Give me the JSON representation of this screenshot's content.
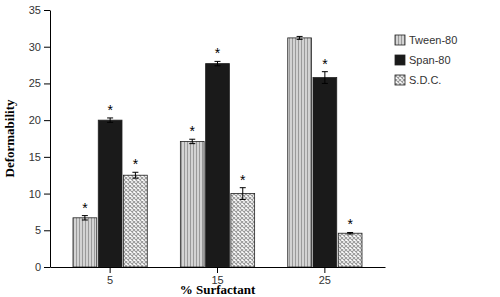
{
  "chart_data": {
    "type": "bar",
    "x_label": "% Surfactant",
    "y_label": "Deformability",
    "categories": [
      "5",
      "15",
      "25"
    ],
    "series": [
      {
        "name": "Tween-80",
        "color": "#c8c8c8",
        "values": [
          6.7,
          17.1,
          31.2
        ],
        "errors": [
          0.3,
          0.3,
          0.2
        ],
        "annotations": [
          "*",
          "*",
          null
        ]
      },
      {
        "name": "Span-80",
        "color": "#1a1a1a",
        "values": [
          20.0,
          27.7,
          25.8
        ],
        "errors": [
          0.3,
          0.3,
          0.8
        ],
        "annotations": [
          "*",
          "*",
          "*"
        ]
      },
      {
        "name": "S.D.C.",
        "color": "#9a9a9a",
        "values": [
          12.5,
          10.0,
          4.6
        ],
        "errors": [
          0.4,
          0.8,
          0.1
        ],
        "annotations": [
          "*",
          "*",
          "*"
        ]
      }
    ],
    "ylim": [
      0,
      35
    ],
    "yticks": [
      0,
      5,
      10,
      15,
      20,
      25,
      30,
      35
    ],
    "grid": false,
    "legend": "right"
  }
}
